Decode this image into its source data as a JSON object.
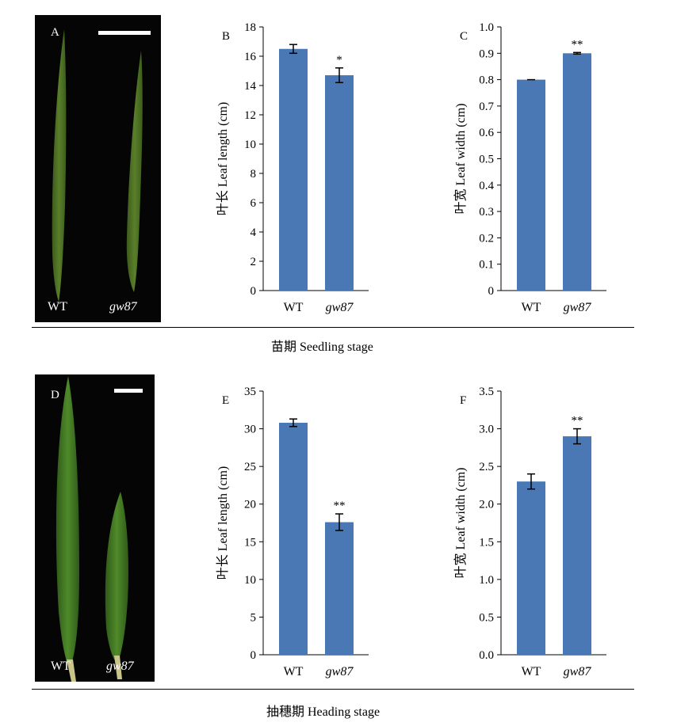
{
  "panels": {
    "A": {
      "label": "A",
      "wt": "WT",
      "mut": "gw87"
    },
    "D": {
      "label": "D",
      "wt": "WT",
      "mut": "gw87"
    }
  },
  "stages": {
    "seedling": "苗期 Seedling stage",
    "heading": "抽穗期 Heading stage"
  },
  "chart_data": [
    {
      "id": "B",
      "type": "bar",
      "panel_label": "B",
      "categories": [
        "WT",
        "gw87"
      ],
      "values": [
        16.5,
        14.7
      ],
      "errors": [
        0.3,
        0.5
      ],
      "significance": [
        "",
        "*"
      ],
      "ylabel": "叶长 Leaf length (cm)",
      "ylim": [
        0,
        18
      ],
      "yticks": [
        0,
        2,
        4,
        6,
        8,
        10,
        12,
        14,
        16,
        18
      ],
      "tick_decimals": 0
    },
    {
      "id": "C",
      "type": "bar",
      "panel_label": "C",
      "categories": [
        "WT",
        "gw87"
      ],
      "values": [
        0.8,
        0.9
      ],
      "errors": [
        0.0,
        0.003
      ],
      "significance": [
        "",
        "**"
      ],
      "ylabel": "叶宽 Leaf width (cm)",
      "ylim": [
        0,
        1.0
      ],
      "yticks": [
        0,
        0.1,
        0.2,
        0.3,
        0.4,
        0.5,
        0.6,
        0.7,
        0.8,
        0.9,
        1.0
      ],
      "tick_decimals": 1,
      "zero_label": "0"
    },
    {
      "id": "E",
      "type": "bar",
      "panel_label": "E",
      "categories": [
        "WT",
        "gw87"
      ],
      "values": [
        30.8,
        17.6
      ],
      "errors": [
        0.5,
        1.1
      ],
      "significance": [
        "",
        "**"
      ],
      "ylabel": "叶长 Leaf length (cm)",
      "ylim": [
        0,
        35
      ],
      "yticks": [
        0,
        5,
        10,
        15,
        20,
        25,
        30,
        35
      ],
      "tick_decimals": 0
    },
    {
      "id": "F",
      "type": "bar",
      "panel_label": "F",
      "categories": [
        "WT",
        "gw87"
      ],
      "values": [
        2.3,
        2.9
      ],
      "errors": [
        0.1,
        0.1
      ],
      "significance": [
        "",
        "**"
      ],
      "ylabel": "叶宽 Leaf width (cm)",
      "ylim": [
        0,
        3.5
      ],
      "yticks": [
        0,
        0.5,
        1.0,
        1.5,
        2.0,
        2.5,
        3.0,
        3.5
      ],
      "tick_decimals": 1
    }
  ]
}
